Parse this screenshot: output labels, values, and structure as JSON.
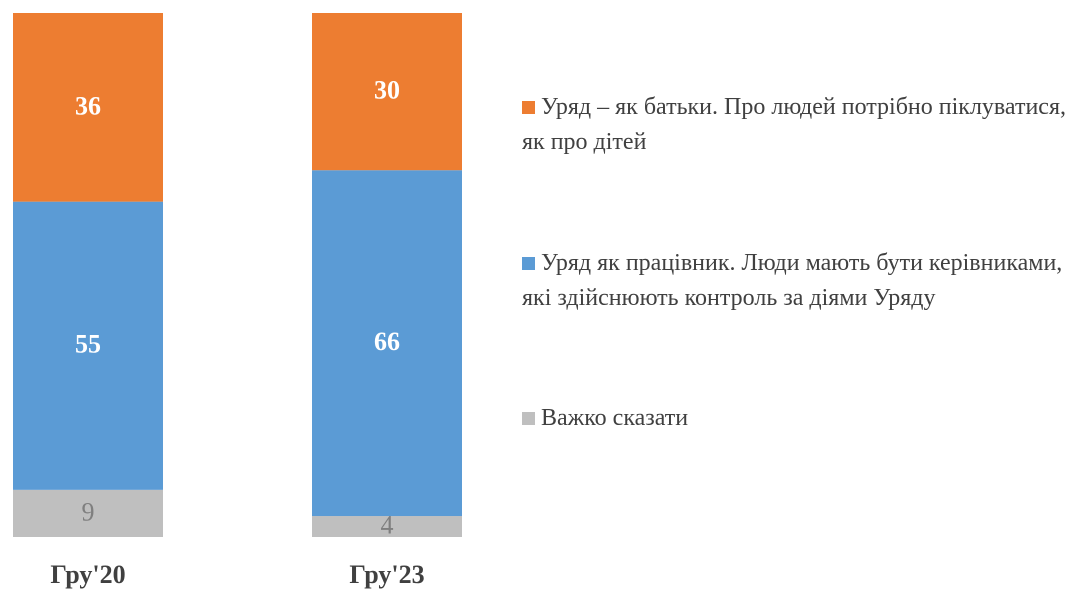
{
  "chart_data": {
    "type": "stacked_bar",
    "categories": [
      "Гру'20",
      "Гру'23"
    ],
    "series": [
      {
        "name": "Уряд – як батьки. Про людей потрібно піклуватися, як про дітей",
        "color": "#ED7D31",
        "values": [
          36,
          30
        ]
      },
      {
        "name": "Уряд як працівник. Люди мають бути керівниками, які здійснюють контроль за діями Уряду",
        "color": "#5B9BD5",
        "values": [
          55,
          66
        ]
      },
      {
        "name": "Важко сказати",
        "color": "#BFBFBF",
        "values": [
          9,
          4
        ]
      }
    ]
  }
}
